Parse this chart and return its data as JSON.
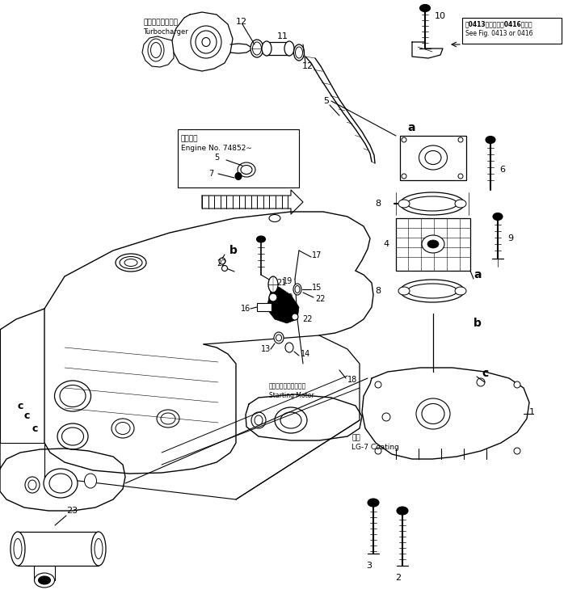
{
  "bg_color": "#ffffff",
  "line_color": "#000000",
  "figsize": [
    6.98,
    7.61
  ],
  "dpi": 100,
  "labels": {
    "turbocharger_jp": "ターボチャージャ",
    "turbocharger_en": "Turbocharger",
    "engine_no_jp": "適用号機",
    "engine_no_en": "Engine No. 74852∼",
    "see_fig_jp": "図0413図または図0416図参照",
    "see_fig_en": "See Fig. 0413 or 0416",
    "starting_motor_jp": "スターティングモータ",
    "starting_motor_en": "Starting Motor",
    "coating_jp": "塗布",
    "coating_en": "LG-7 Coating"
  }
}
